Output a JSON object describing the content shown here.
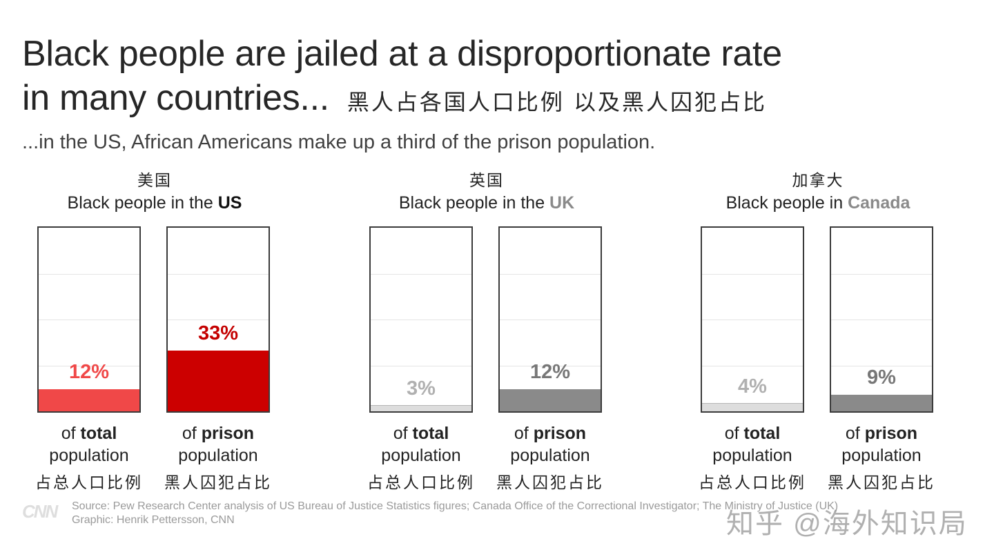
{
  "header": {
    "title_line1": "Black people are jailed at a disproportionate rate",
    "title_line2": "in many countries...",
    "title_cn": "黑人占各国人口比例 以及黑人囚犯占比",
    "subtitle": "...in the US, African Americans make up a third of the prison population."
  },
  "chart_data": {
    "type": "bar",
    "ylim": [
      0,
      100
    ],
    "grid": true,
    "panels": [
      {
        "cn_label": "美国",
        "title_prefix": "Black people in the ",
        "country": "US",
        "bars": [
          {
            "value": 12,
            "label": "12%",
            "cap_of": "of ",
            "cap_bold": "total",
            "cap_rest": "population",
            "cap_cn": "占总人口比例",
            "color": "#f04848"
          },
          {
            "value": 33,
            "label": "33%",
            "cap_of": "of ",
            "cap_bold": "prison",
            "cap_rest": "population",
            "cap_cn": "黑人囚犯占比",
            "color": "#cc0000"
          }
        ]
      },
      {
        "cn_label": "英国",
        "title_prefix": "Black people in the ",
        "country": "UK",
        "bars": [
          {
            "value": 3,
            "label": "3%",
            "cap_of": "of ",
            "cap_bold": "total",
            "cap_rest": "population",
            "cap_cn": "占总人口比例",
            "color": "#dddddd"
          },
          {
            "value": 12,
            "label": "12%",
            "cap_of": "of ",
            "cap_bold": "prison",
            "cap_rest": "population",
            "cap_cn": "黑人囚犯占比",
            "color": "#8a8a8a"
          }
        ]
      },
      {
        "cn_label": "加拿大",
        "title_prefix": "Black people in ",
        "country": "Canada",
        "bars": [
          {
            "value": 4,
            "label": "4%",
            "cap_of": "of ",
            "cap_bold": "total",
            "cap_rest": "population",
            "cap_cn": "占总人口比例",
            "color": "#dddddd"
          },
          {
            "value": 9,
            "label": "9%",
            "cap_of": "of ",
            "cap_bold": "prison",
            "cap_rest": "population",
            "cap_cn": "黑人囚犯占比",
            "color": "#8a8a8a"
          }
        ]
      }
    ]
  },
  "colors": {
    "us_total_label": "#f04848",
    "us_prison_label": "#c40000",
    "grey_light_label": "#b0b0b0",
    "grey_dark_label": "#777777",
    "country_us": "#111111",
    "country_other": "#8a8a8a"
  },
  "footer": {
    "logo": "CNN",
    "source": "Source: Pew Research Center analysis of US Bureau of Justice Statistics figures; Canada Office of the Correctional Investigator; The Ministry of Justice (UK)",
    "graphic": "Graphic: Henrik Pettersson, CNN",
    "watermark": "知乎 @海外知识局"
  }
}
